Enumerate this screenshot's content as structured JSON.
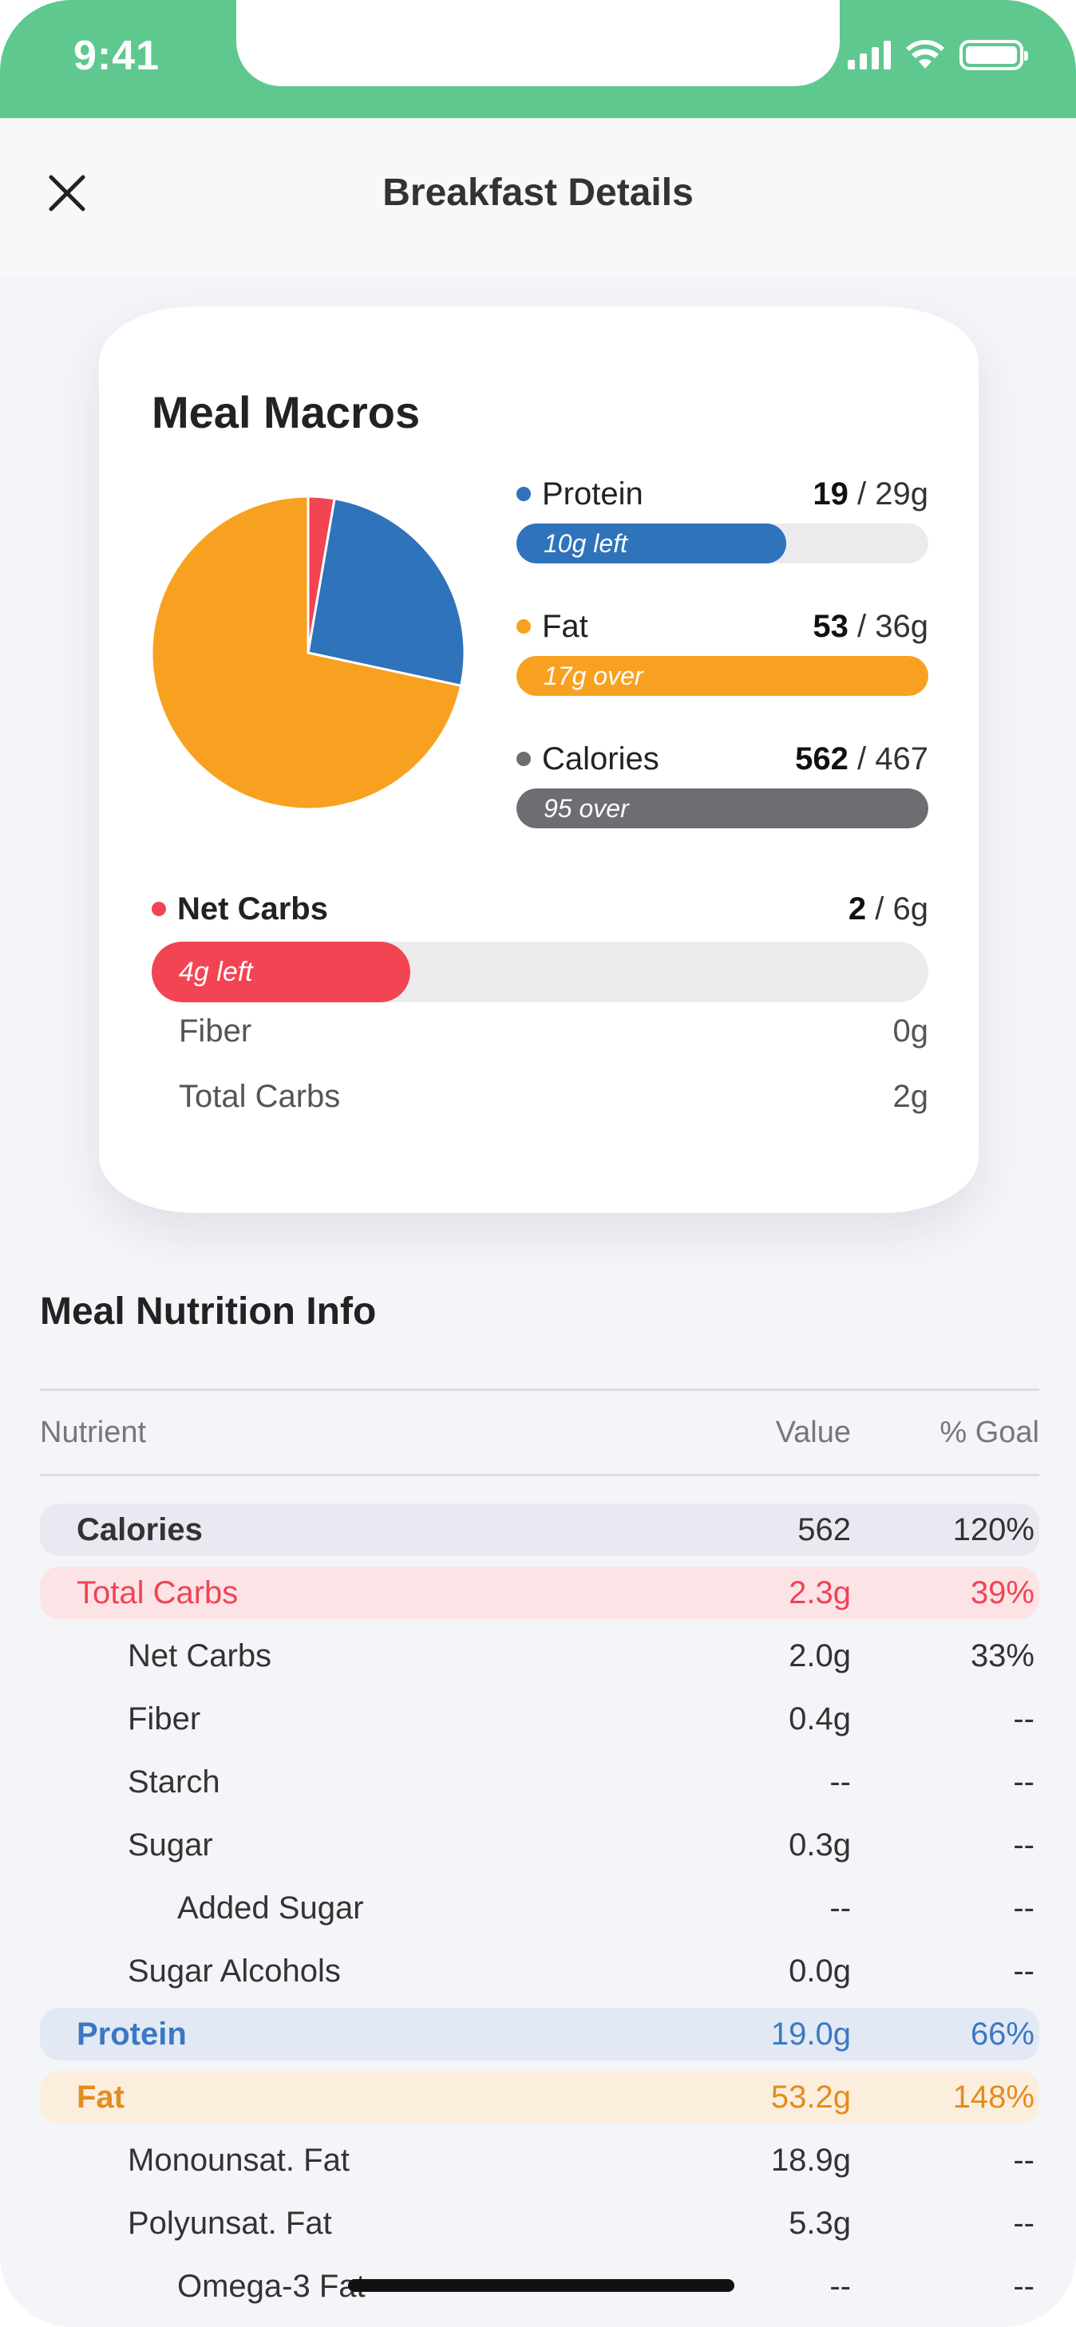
{
  "status_bar": {
    "time": "9:41"
  },
  "header": {
    "title": "Breakfast Details"
  },
  "macro_card": {
    "title": "Meal Macros",
    "colors": {
      "protein": "#2f73ba",
      "fat": "#f8a120",
      "calories": "#6d6e72",
      "net_carbs": "#f24452"
    },
    "protein": {
      "label": "Protein",
      "value": "19",
      "goal": "/ 29g",
      "bar_text": "10g left",
      "fill_fraction": 0.655
    },
    "fat": {
      "label": "Fat",
      "value": "53",
      "goal": "/ 36g",
      "bar_text": "17g over",
      "fill_fraction": 1.0
    },
    "calories": {
      "label": "Calories",
      "value": "562",
      "goal": "/ 467",
      "bar_text": "95 over",
      "fill_fraction": 1.0
    },
    "net_carbs": {
      "label": "Net Carbs",
      "value": "2",
      "goal": "/ 6g",
      "bar_text": "4g left",
      "fill_fraction": 0.333
    },
    "fiber": {
      "label": "Fiber",
      "value": "0g"
    },
    "total_carbs": {
      "label": "Total Carbs",
      "value": "2g"
    }
  },
  "chart_data": {
    "type": "pie",
    "slices": [
      {
        "name": "Protein",
        "value": 19,
        "color": "#2f73ba"
      },
      {
        "name": "Fat",
        "value": 53,
        "color": "#f8a120"
      },
      {
        "name": "Net Carbs",
        "value": 2,
        "color": "#f24452"
      }
    ]
  },
  "nutrition": {
    "title": "Meal Nutrition Info",
    "columns": {
      "nutrient": "Nutrient",
      "value": "Value",
      "goal": "% Goal"
    },
    "rows": [
      {
        "name": "Calories",
        "value": "562",
        "pct": "120%"
      },
      {
        "name": "Total Carbs",
        "value": "2.3g",
        "pct": "39%"
      },
      {
        "name": "Net Carbs",
        "value": "2.0g",
        "pct": "33%"
      },
      {
        "name": "Fiber",
        "value": "0.4g",
        "pct": "--"
      },
      {
        "name": "Starch",
        "value": "--",
        "pct": "--"
      },
      {
        "name": "Sugar",
        "value": "0.3g",
        "pct": "--"
      },
      {
        "name": "Added Sugar",
        "value": "--",
        "pct": "--"
      },
      {
        "name": "Sugar Alcohols",
        "value": "0.0g",
        "pct": "--"
      },
      {
        "name": "Protein",
        "value": "19.0g",
        "pct": "66%"
      },
      {
        "name": "Fat",
        "value": "53.2g",
        "pct": "148%"
      },
      {
        "name": "Monounsat. Fat",
        "value": "18.9g",
        "pct": "--"
      },
      {
        "name": "Polyunsat. Fat",
        "value": "5.3g",
        "pct": "--"
      },
      {
        "name": "Omega-3 Fat",
        "value": "--",
        "pct": "--"
      }
    ]
  }
}
